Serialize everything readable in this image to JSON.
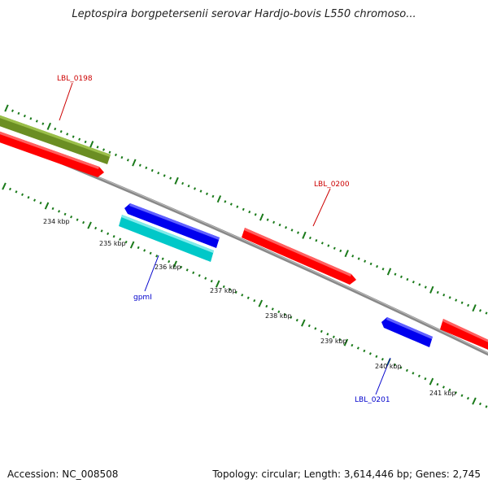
{
  "title": "Leptospira borgpetersenii serovar Hardjo-bovis L550 chromoso...",
  "footer": {
    "accession": "Accession: NC_008508",
    "summary": "Topology: circular; Length: 3,614,446 bp; Genes: 2,745"
  },
  "ticks": [
    "234 kbp",
    "235 kbp",
    "236 kbp",
    "237 kbp",
    "238 kbp",
    "239 kbp",
    "240 kbp",
    "241 kbp"
  ],
  "genes": [
    {
      "label": "LBL_0198",
      "color": "#6b8e23",
      "strand": "forward",
      "labeled": true,
      "label_color": "#cc0000"
    },
    {
      "label": "",
      "color": "#ff0000",
      "strand": "forward",
      "labeled": false
    },
    {
      "label": "",
      "color": "#0000ee",
      "strand": "reverse",
      "labeled": false
    },
    {
      "label": "gpmI",
      "color": "#00c8c8",
      "strand": "reverse",
      "labeled": true,
      "label_color": "#0000cc"
    },
    {
      "label": "LBL_0200",
      "color": "#ff0000",
      "strand": "forward",
      "labeled": true,
      "label_color": "#cc0000"
    },
    {
      "label": "LBL_0201",
      "color": "#0000ee",
      "strand": "reverse",
      "labeled": true,
      "label_color": "#0000cc"
    },
    {
      "label": "",
      "color": "#ff0000",
      "strand": "forward",
      "labeled": false
    }
  ],
  "colors": {
    "backbone": "#888888",
    "tick_marks": "#1a7a1a"
  }
}
